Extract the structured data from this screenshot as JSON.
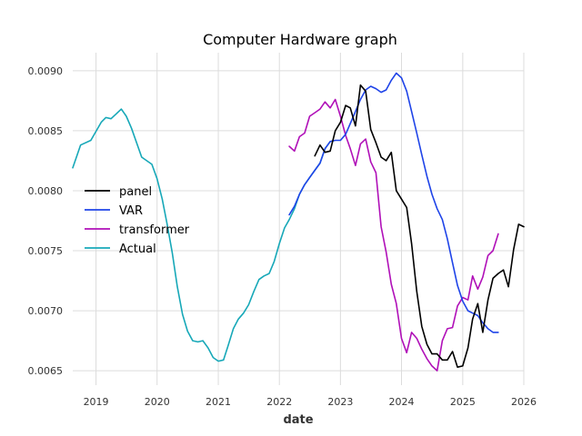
{
  "chart_data": {
    "type": "line",
    "title": "Computer Hardware graph",
    "xlabel": "date",
    "ylabel": "",
    "xlim": [
      "2018-08-15",
      "2026-01-01"
    ],
    "ylim": [
      0.00638,
      0.00915
    ],
    "x_ticks": [
      {
        "date": "2019-01-01",
        "label": "2019"
      },
      {
        "date": "2020-01-01",
        "label": "2020"
      },
      {
        "date": "2021-01-01",
        "label": "2021"
      },
      {
        "date": "2022-01-01",
        "label": "2022"
      },
      {
        "date": "2023-01-01",
        "label": "2023"
      },
      {
        "date": "2024-01-01",
        "label": "2024"
      },
      {
        "date": "2025-01-01",
        "label": "2025"
      },
      {
        "date": "2026-01-01",
        "label": "2026"
      }
    ],
    "y_ticks": [
      {
        "value": 0.0065,
        "label": "0.0065"
      },
      {
        "value": 0.007,
        "label": "0.0070"
      },
      {
        "value": 0.0075,
        "label": "0.0075"
      },
      {
        "value": 0.008,
        "label": "0.0080"
      },
      {
        "value": 0.0085,
        "label": "0.0085"
      },
      {
        "value": 0.009,
        "label": "0.0090"
      }
    ],
    "grid": true,
    "legend_position": "center-left",
    "series": [
      {
        "name": "panel",
        "color": "#000000",
        "points": [
          [
            "2022-08-01",
            0.00829
          ],
          [
            "2022-09-01",
            0.00838
          ],
          [
            "2022-10-01",
            0.00832
          ],
          [
            "2022-11-01",
            0.00833
          ],
          [
            "2022-12-01",
            0.0085
          ],
          [
            "2023-01-01",
            0.00857
          ],
          [
            "2023-02-01",
            0.00871
          ],
          [
            "2023-03-01",
            0.00869
          ],
          [
            "2023-04-01",
            0.00854
          ],
          [
            "2023-05-01",
            0.00888
          ],
          [
            "2023-06-01",
            0.00883
          ],
          [
            "2023-07-01",
            0.00851
          ],
          [
            "2023-08-01",
            0.0084
          ],
          [
            "2023-09-01",
            0.00828
          ],
          [
            "2023-10-01",
            0.00825
          ],
          [
            "2023-11-01",
            0.00832
          ],
          [
            "2023-12-01",
            0.008
          ],
          [
            "2024-01-01",
            0.00793
          ],
          [
            "2024-02-01",
            0.00786
          ],
          [
            "2024-03-01",
            0.00756
          ],
          [
            "2024-04-01",
            0.00716
          ],
          [
            "2024-05-01",
            0.00687
          ],
          [
            "2024-06-01",
            0.00672
          ],
          [
            "2024-07-01",
            0.00664
          ],
          [
            "2024-08-01",
            0.00664
          ],
          [
            "2024-09-01",
            0.00659
          ],
          [
            "2024-10-01",
            0.00659
          ],
          [
            "2024-11-01",
            0.00666
          ],
          [
            "2024-12-01",
            0.00653
          ],
          [
            "2025-01-01",
            0.00654
          ],
          [
            "2025-02-01",
            0.00669
          ],
          [
            "2025-03-01",
            0.00693
          ],
          [
            "2025-04-01",
            0.00706
          ],
          [
            "2025-05-01",
            0.00682
          ],
          [
            "2025-06-01",
            0.00709
          ],
          [
            "2025-07-01",
            0.00727
          ],
          [
            "2025-08-01",
            0.00731
          ],
          [
            "2025-09-01",
            0.00734
          ],
          [
            "2025-10-01",
            0.0072
          ],
          [
            "2025-11-01",
            0.00751
          ],
          [
            "2025-12-01",
            0.00772
          ],
          [
            "2026-01-01",
            0.0077
          ]
        ]
      },
      {
        "name": "VAR",
        "color": "#1f44e8",
        "points": [
          [
            "2022-03-01",
            0.0078
          ],
          [
            "2022-04-01",
            0.00787
          ],
          [
            "2022-05-01",
            0.00797
          ],
          [
            "2022-06-01",
            0.00805
          ],
          [
            "2022-07-01",
            0.00811
          ],
          [
            "2022-08-01",
            0.00817
          ],
          [
            "2022-09-01",
            0.00823
          ],
          [
            "2022-10-01",
            0.00835
          ],
          [
            "2022-11-01",
            0.00841
          ],
          [
            "2022-12-01",
            0.00842
          ],
          [
            "2023-01-01",
            0.00842
          ],
          [
            "2023-02-01",
            0.00847
          ],
          [
            "2023-03-01",
            0.00856
          ],
          [
            "2023-04-01",
            0.00866
          ],
          [
            "2023-05-01",
            0.00876
          ],
          [
            "2023-06-01",
            0.00884
          ],
          [
            "2023-07-01",
            0.00887
          ],
          [
            "2023-08-01",
            0.00885
          ],
          [
            "2023-09-01",
            0.00882
          ],
          [
            "2023-10-01",
            0.00884
          ],
          [
            "2023-11-01",
            0.00892
          ],
          [
            "2023-12-01",
            0.00898
          ],
          [
            "2024-01-01",
            0.00894
          ],
          [
            "2024-02-01",
            0.00883
          ],
          [
            "2024-03-01",
            0.00866
          ],
          [
            "2024-04-01",
            0.00848
          ],
          [
            "2024-05-01",
            0.0083
          ],
          [
            "2024-06-01",
            0.00812
          ],
          [
            "2024-07-01",
            0.00797
          ],
          [
            "2024-08-01",
            0.00785
          ],
          [
            "2024-09-01",
            0.00776
          ],
          [
            "2024-10-01",
            0.0076
          ],
          [
            "2024-11-01",
            0.0074
          ],
          [
            "2024-12-01",
            0.00721
          ],
          [
            "2025-01-01",
            0.00708
          ],
          [
            "2025-02-01",
            0.007
          ],
          [
            "2025-03-01",
            0.00698
          ],
          [
            "2025-04-01",
            0.00696
          ],
          [
            "2025-05-01",
            0.0069
          ],
          [
            "2025-06-01",
            0.00685
          ],
          [
            "2025-07-01",
            0.00682
          ],
          [
            "2025-08-01",
            0.00682
          ]
        ]
      },
      {
        "name": "transformer",
        "color": "#b010b8",
        "points": [
          [
            "2022-03-01",
            0.00837
          ],
          [
            "2022-04-01",
            0.00833
          ],
          [
            "2022-05-01",
            0.00845
          ],
          [
            "2022-06-01",
            0.00848
          ],
          [
            "2022-07-01",
            0.00862
          ],
          [
            "2022-08-01",
            0.00865
          ],
          [
            "2022-09-01",
            0.00868
          ],
          [
            "2022-10-01",
            0.00874
          ],
          [
            "2022-11-01",
            0.00869
          ],
          [
            "2022-12-01",
            0.00876
          ],
          [
            "2023-01-01",
            0.00862
          ],
          [
            "2023-02-01",
            0.00846
          ],
          [
            "2023-03-01",
            0.00835
          ],
          [
            "2023-04-01",
            0.00821
          ],
          [
            "2023-05-01",
            0.00839
          ],
          [
            "2023-06-01",
            0.00843
          ],
          [
            "2023-07-01",
            0.00824
          ],
          [
            "2023-08-01",
            0.00815
          ],
          [
            "2023-09-01",
            0.0077
          ],
          [
            "2023-10-01",
            0.00749
          ],
          [
            "2023-11-01",
            0.00722
          ],
          [
            "2023-12-01",
            0.00706
          ],
          [
            "2024-01-01",
            0.00677
          ],
          [
            "2024-02-01",
            0.00665
          ],
          [
            "2024-03-01",
            0.00682
          ],
          [
            "2024-04-01",
            0.00677
          ],
          [
            "2024-05-01",
            0.00668
          ],
          [
            "2024-06-01",
            0.0066
          ],
          [
            "2024-07-01",
            0.00654
          ],
          [
            "2024-08-01",
            0.0065
          ],
          [
            "2024-09-01",
            0.00675
          ],
          [
            "2024-10-01",
            0.00685
          ],
          [
            "2024-11-01",
            0.00686
          ],
          [
            "2024-12-01",
            0.00704
          ],
          [
            "2025-01-01",
            0.00711
          ],
          [
            "2025-02-01",
            0.00709
          ],
          [
            "2025-03-01",
            0.00729
          ],
          [
            "2025-04-01",
            0.00718
          ],
          [
            "2025-05-01",
            0.00728
          ],
          [
            "2025-06-01",
            0.00746
          ],
          [
            "2025-07-01",
            0.0075
          ],
          [
            "2025-08-01",
            0.00764
          ]
        ]
      },
      {
        "name": "Actual",
        "color": "#17a8b8",
        "points": [
          [
            "2018-08-15",
            0.00819
          ],
          [
            "2018-10-01",
            0.00838
          ],
          [
            "2018-12-01",
            0.00842
          ],
          [
            "2019-02-01",
            0.00857
          ],
          [
            "2019-03-01",
            0.00861
          ],
          [
            "2019-04-01",
            0.0086
          ],
          [
            "2019-06-01",
            0.00868
          ],
          [
            "2019-07-01",
            0.00862
          ],
          [
            "2019-08-01",
            0.00852
          ],
          [
            "2019-10-01",
            0.00828
          ],
          [
            "2019-12-01",
            0.00822
          ],
          [
            "2020-01-01",
            0.0081
          ],
          [
            "2020-02-01",
            0.00793
          ],
          [
            "2020-03-01",
            0.00772
          ],
          [
            "2020-04-01",
            0.00748
          ],
          [
            "2020-05-01",
            0.0072
          ],
          [
            "2020-06-01",
            0.00697
          ],
          [
            "2020-07-01",
            0.00683
          ],
          [
            "2020-08-01",
            0.00675
          ],
          [
            "2020-09-01",
            0.00674
          ],
          [
            "2020-10-01",
            0.00675
          ],
          [
            "2020-11-01",
            0.00669
          ],
          [
            "2020-12-01",
            0.00661
          ],
          [
            "2021-01-01",
            0.00658
          ],
          [
            "2021-02-01",
            0.00659
          ],
          [
            "2021-03-01",
            0.00671
          ],
          [
            "2021-04-01",
            0.00685
          ],
          [
            "2021-05-01",
            0.00693
          ],
          [
            "2021-06-01",
            0.00698
          ],
          [
            "2021-07-01",
            0.00705
          ],
          [
            "2021-08-01",
            0.00716
          ],
          [
            "2021-09-01",
            0.00726
          ],
          [
            "2021-10-01",
            0.00729
          ],
          [
            "2021-11-01",
            0.00731
          ],
          [
            "2021-12-01",
            0.00741
          ],
          [
            "2022-01-01",
            0.00756
          ],
          [
            "2022-02-01",
            0.00769
          ],
          [
            "2022-03-01",
            0.00776
          ],
          [
            "2022-04-01",
            0.00785
          ],
          [
            "2022-05-01",
            0.00797
          ],
          [
            "2022-06-01",
            0.00805
          ],
          [
            "2022-07-01",
            0.00811
          ],
          [
            "2022-08-01",
            0.00817
          ],
          [
            "2022-09-01",
            0.00823
          ],
          [
            "2022-10-01",
            0.00835
          ],
          [
            "2022-11-01",
            0.00841
          ]
        ]
      }
    ]
  }
}
